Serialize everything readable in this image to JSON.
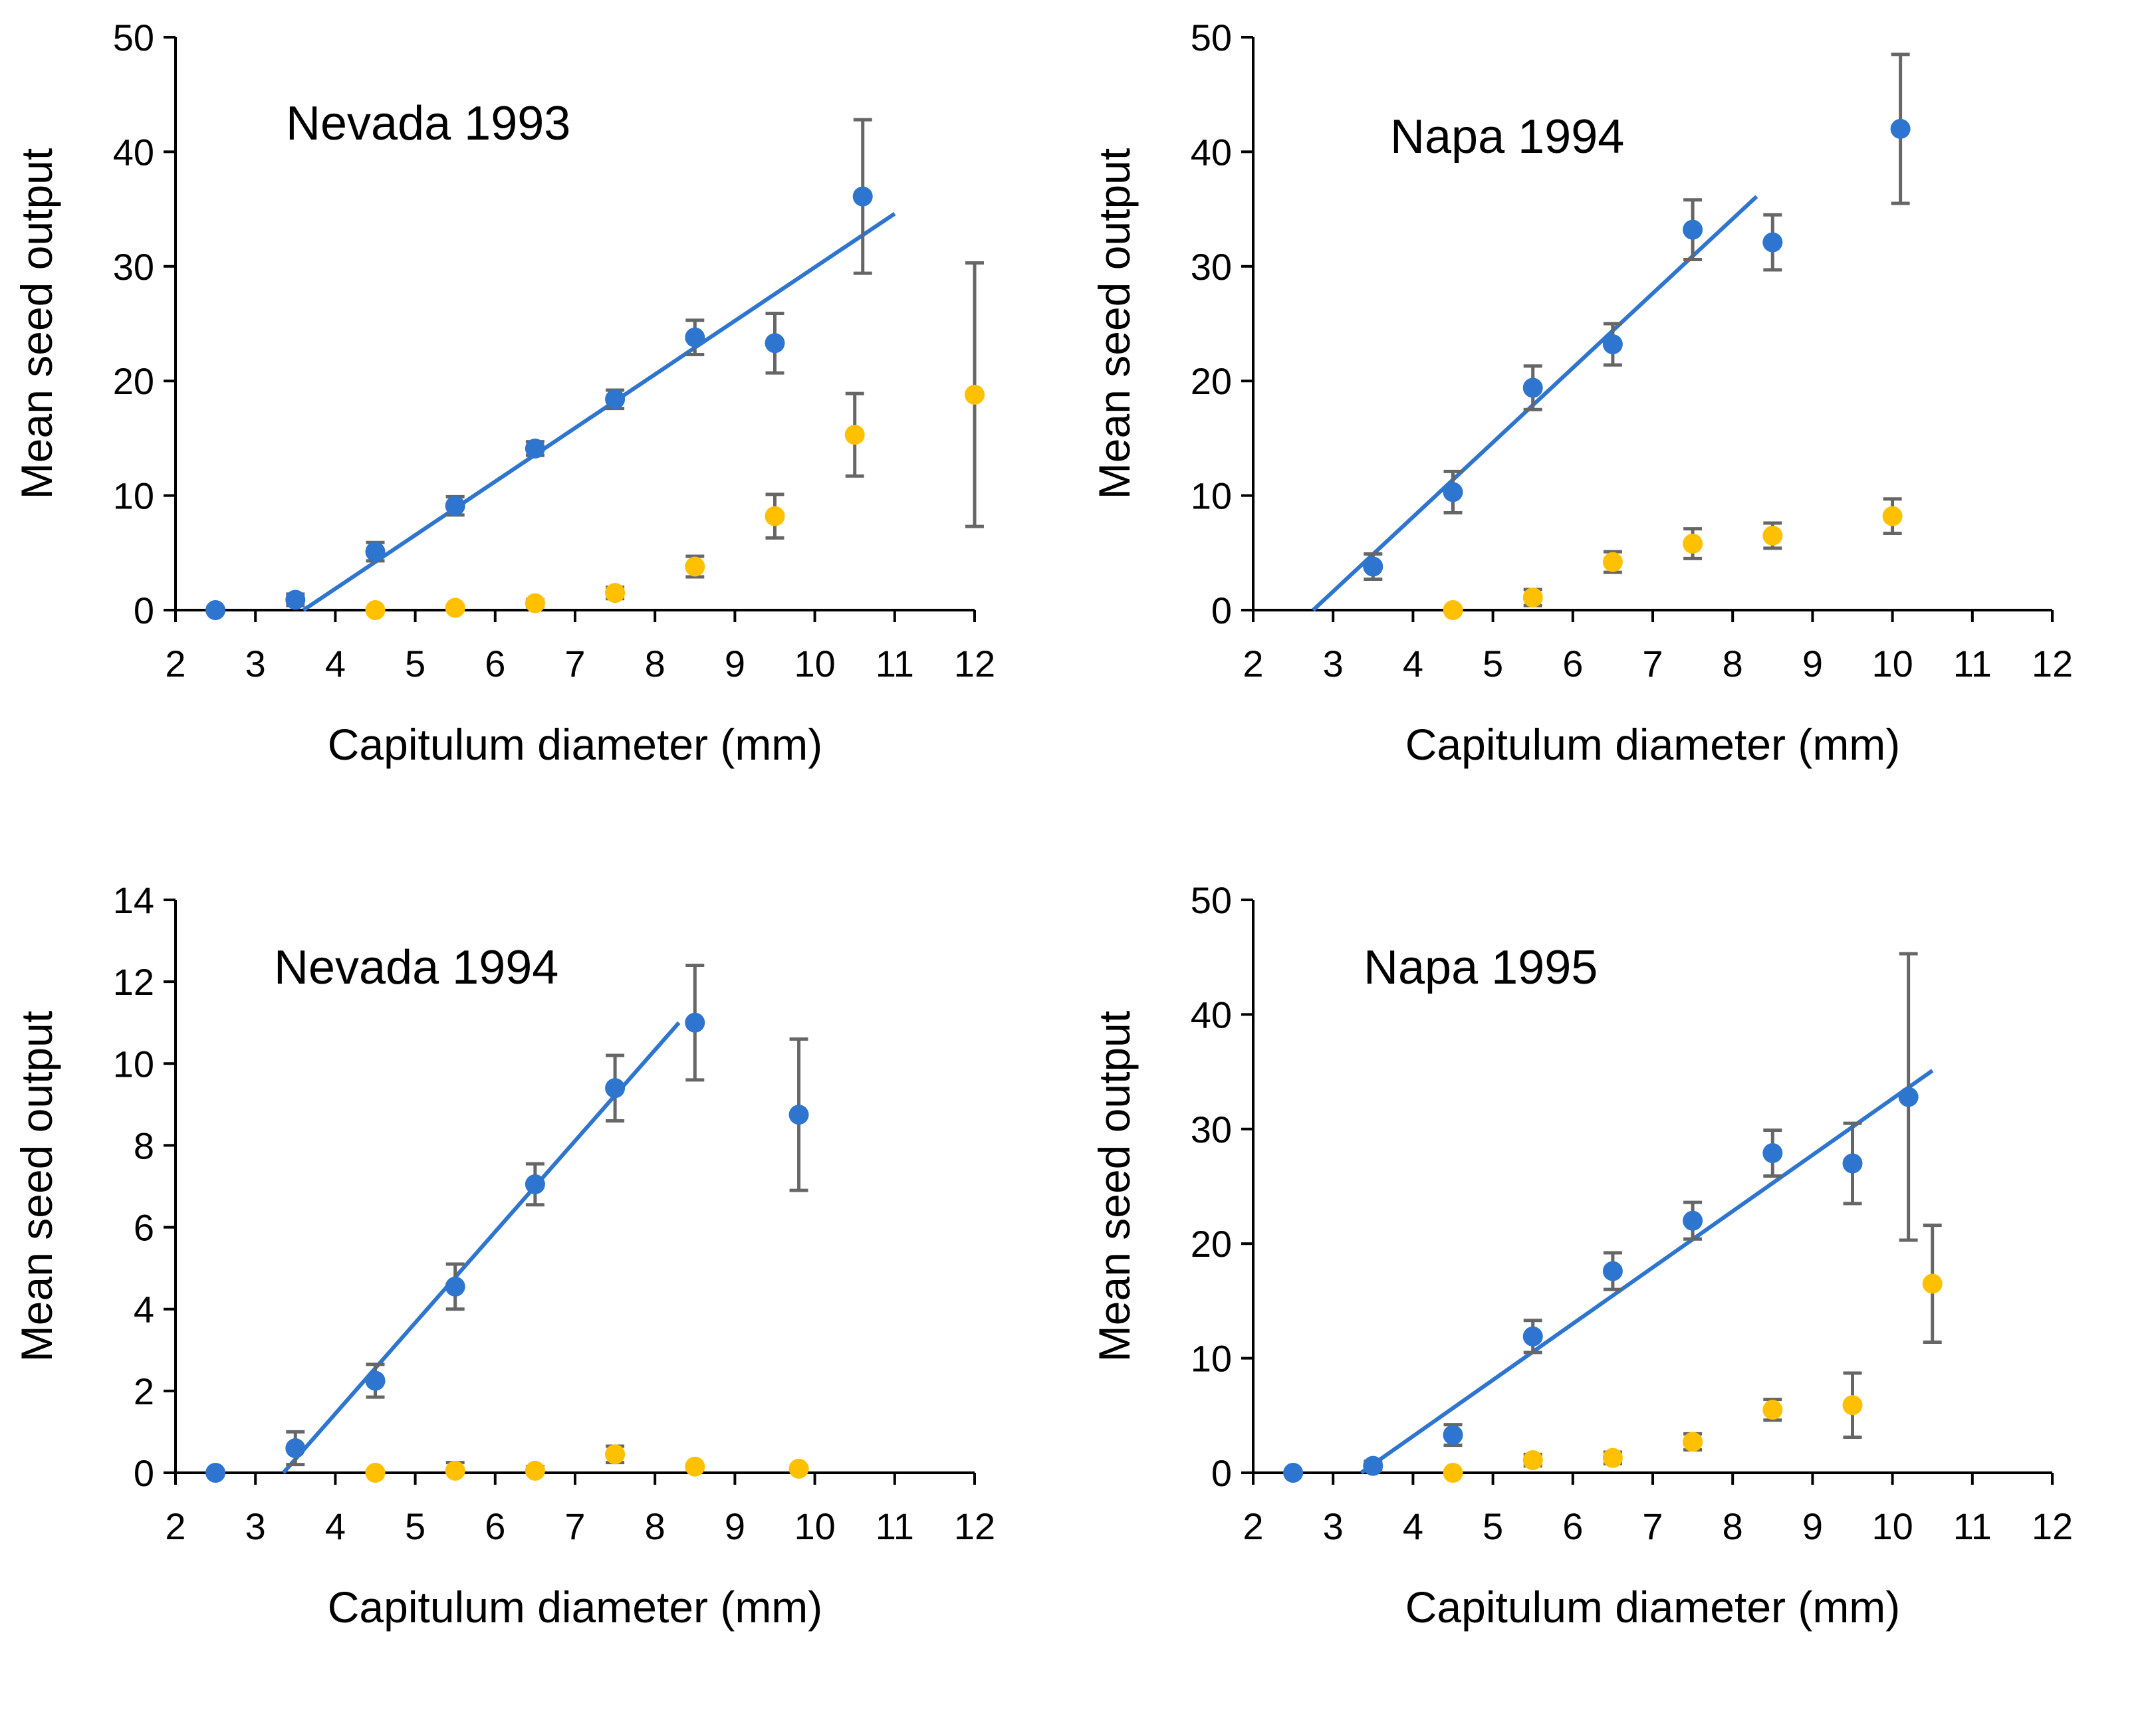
{
  "colors": {
    "blue": "#2e75cf",
    "yellow": "#ffc000",
    "error_bar": "#666666",
    "axis": "#000000"
  },
  "chart_data": [
    {
      "type": "scatter",
      "title": "Nevada 1993",
      "xlabel": "Capitulum diameter (mm)",
      "ylabel": "Mean seed output",
      "xlim": [
        2,
        12
      ],
      "ylim": [
        0,
        50
      ],
      "xticks": [
        2,
        3,
        4,
        5,
        6,
        7,
        8,
        9,
        10,
        11,
        12
      ],
      "yticks": [
        0,
        10,
        20,
        30,
        40,
        50
      ],
      "grid": false,
      "series": [
        {
          "name": "blue",
          "color": "#2e75cf",
          "points": [
            {
              "x": 2.5,
              "y": 0,
              "err": 0
            },
            {
              "x": 3.5,
              "y": 0.9,
              "err": 0.5
            },
            {
              "x": 4.5,
              "y": 5.1,
              "err": 0.8
            },
            {
              "x": 5.5,
              "y": 9.1,
              "err": 0.8
            },
            {
              "x": 6.5,
              "y": 14.1,
              "err": 0.6
            },
            {
              "x": 7.5,
              "y": 18.4,
              "err": 0.8
            },
            {
              "x": 8.5,
              "y": 23.8,
              "err": 1.5
            },
            {
              "x": 9.5,
              "y": 23.3,
              "err": 2.6
            },
            {
              "x": 10.6,
              "y": 36.1,
              "err": 6.7
            }
          ]
        },
        {
          "name": "yellow",
          "color": "#ffc000",
          "points": [
            {
              "x": 4.5,
              "y": 0,
              "err": 0
            },
            {
              "x": 5.5,
              "y": 0.2,
              "err": 0.2
            },
            {
              "x": 6.5,
              "y": 0.6,
              "err": 0.3
            },
            {
              "x": 7.5,
              "y": 1.5,
              "err": 0.5
            },
            {
              "x": 8.5,
              "y": 3.8,
              "err": 0.9
            },
            {
              "x": 9.5,
              "y": 8.2,
              "err": 1.9
            },
            {
              "x": 10.5,
              "y": 15.3,
              "err": 3.6
            },
            {
              "x": 12,
              "y": 18.8,
              "err": 11.5
            }
          ]
        }
      ],
      "trendline": {
        "x": [
          3.6,
          11.0
        ],
        "y": [
          0,
          34.6
        ]
      }
    },
    {
      "type": "scatter",
      "title": "Napa 1994",
      "xlabel": "Capitulum diameter (mm)",
      "ylabel": "Mean seed output",
      "xlim": [
        2,
        12
      ],
      "ylim": [
        0,
        50
      ],
      "xticks": [
        2,
        3,
        4,
        5,
        6,
        7,
        8,
        9,
        10,
        11,
        12
      ],
      "yticks": [
        0,
        10,
        20,
        30,
        40,
        50
      ],
      "grid": false,
      "series": [
        {
          "name": "blue",
          "color": "#2e75cf",
          "points": [
            {
              "x": 3.5,
              "y": 3.8,
              "err": 1.1
            },
            {
              "x": 4.5,
              "y": 10.3,
              "err": 1.8
            },
            {
              "x": 5.5,
              "y": 19.4,
              "err": 1.9
            },
            {
              "x": 6.5,
              "y": 23.2,
              "err": 1.8
            },
            {
              "x": 7.5,
              "y": 33.2,
              "err": 2.6
            },
            {
              "x": 8.5,
              "y": 32.1,
              "err": 2.4
            },
            {
              "x": 10.1,
              "y": 42.0,
              "err": 6.5
            }
          ]
        },
        {
          "name": "yellow",
          "color": "#ffc000",
          "points": [
            {
              "x": 4.5,
              "y": 0,
              "err": 0
            },
            {
              "x": 5.5,
              "y": 1.1,
              "err": 0.7
            },
            {
              "x": 6.5,
              "y": 4.2,
              "err": 0.9
            },
            {
              "x": 7.5,
              "y": 5.8,
              "err": 1.3
            },
            {
              "x": 8.5,
              "y": 6.5,
              "err": 1.1
            },
            {
              "x": 10.0,
              "y": 8.2,
              "err": 1.5
            }
          ]
        }
      ],
      "trendline": {
        "x": [
          2.75,
          8.3
        ],
        "y": [
          0,
          36.1
        ]
      }
    },
    {
      "type": "scatter",
      "title": "Nevada 1994",
      "xlabel": "Capitulum diameter (mm)",
      "ylabel": "Mean seed output",
      "xlim": [
        2,
        12
      ],
      "ylim": [
        0,
        14
      ],
      "xticks": [
        2,
        3,
        4,
        5,
        6,
        7,
        8,
        9,
        10,
        11,
        12
      ],
      "yticks": [
        0,
        2,
        4,
        6,
        8,
        10,
        12,
        14
      ],
      "grid": false,
      "series": [
        {
          "name": "blue",
          "color": "#2e75cf",
          "points": [
            {
              "x": 2.5,
              "y": 0,
              "err": 0
            },
            {
              "x": 3.5,
              "y": 0.6,
              "err": 0.4
            },
            {
              "x": 4.5,
              "y": 2.25,
              "err": 0.4
            },
            {
              "x": 5.5,
              "y": 4.55,
              "err": 0.55
            },
            {
              "x": 6.5,
              "y": 7.05,
              "err": 0.5
            },
            {
              "x": 7.5,
              "y": 9.4,
              "err": 0.8
            },
            {
              "x": 8.5,
              "y": 11.0,
              "err": 1.4
            },
            {
              "x": 9.8,
              "y": 8.75,
              "err": 1.85
            }
          ]
        },
        {
          "name": "yellow",
          "color": "#ffc000",
          "points": [
            {
              "x": 4.5,
              "y": 0,
              "err": 0
            },
            {
              "x": 5.5,
              "y": 0.05,
              "err": 0.2
            },
            {
              "x": 6.5,
              "y": 0.05,
              "err": 0.1
            },
            {
              "x": 7.5,
              "y": 0.45,
              "err": 0.2
            },
            {
              "x": 8.5,
              "y": 0.15,
              "err": 0
            },
            {
              "x": 9.8,
              "y": 0.1,
              "err": 0
            }
          ]
        }
      ],
      "trendline": {
        "x": [
          3.35,
          8.3
        ],
        "y": [
          0,
          11.0
        ]
      }
    },
    {
      "type": "scatter",
      "title": "Napa 1995",
      "xlabel": "Capitulum diameter (mm)",
      "ylabel": "Mean seed output",
      "xlim": [
        2,
        12
      ],
      "ylim": [
        0,
        50
      ],
      "xticks": [
        2,
        3,
        4,
        5,
        6,
        7,
        8,
        9,
        10,
        11,
        12
      ],
      "yticks": [
        0,
        10,
        20,
        30,
        40,
        50
      ],
      "grid": false,
      "series": [
        {
          "name": "blue",
          "color": "#2e75cf",
          "points": [
            {
              "x": 2.5,
              "y": 0,
              "err": 0
            },
            {
              "x": 3.5,
              "y": 0.6,
              "err": 0.4
            },
            {
              "x": 4.5,
              "y": 3.3,
              "err": 0.9
            },
            {
              "x": 5.5,
              "y": 11.9,
              "err": 1.4
            },
            {
              "x": 6.5,
              "y": 17.6,
              "err": 1.6
            },
            {
              "x": 7.5,
              "y": 22.0,
              "err": 1.6
            },
            {
              "x": 8.5,
              "y": 27.9,
              "err": 2.0
            },
            {
              "x": 9.5,
              "y": 27.0,
              "err": 3.5
            },
            {
              "x": 10.2,
              "y": 32.8,
              "err": 12.5
            }
          ]
        },
        {
          "name": "yellow",
          "color": "#ffc000",
          "points": [
            {
              "x": 4.5,
              "y": 0,
              "err": 0
            },
            {
              "x": 5.5,
              "y": 1.1,
              "err": 0.5
            },
            {
              "x": 6.5,
              "y": 1.3,
              "err": 0.5
            },
            {
              "x": 7.5,
              "y": 2.7,
              "err": 0.7
            },
            {
              "x": 8.5,
              "y": 5.5,
              "err": 0.9
            },
            {
              "x": 9.5,
              "y": 5.9,
              "err": 2.8
            },
            {
              "x": 10.5,
              "y": 16.5,
              "err": 5.1
            }
          ]
        }
      ],
      "trendline": {
        "x": [
          3.35,
          10.5
        ],
        "y": [
          0,
          35.1
        ]
      }
    }
  ]
}
